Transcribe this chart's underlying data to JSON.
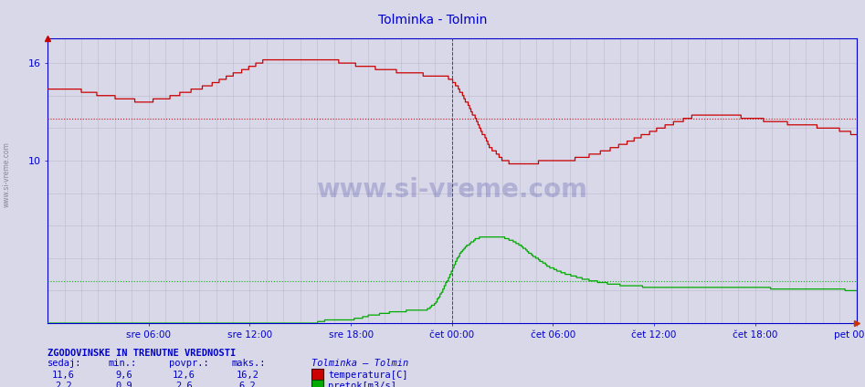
{
  "title": "Tolminka - Tolmin",
  "title_color": "#0000cc",
  "bg_color": "#d8d8e8",
  "plot_bg_color": "#d8d8e8",
  "x_labels": [
    "sre 06:00",
    "sre 12:00",
    "sre 18:00",
    "čet 00:00",
    "čet 06:00",
    "čet 12:00",
    "čet 18:00",
    "pet 00:00"
  ],
  "x_tick_positions": [
    0.125,
    0.25,
    0.375,
    0.5,
    0.625,
    0.75,
    0.875,
    1.0
  ],
  "ylim": [
    0,
    17.5
  ],
  "yticks": [
    10,
    16
  ],
  "temp_avg": 12.6,
  "flow_avg": 2.6,
  "temp_color": "#cc0000",
  "flow_color": "#00aa00",
  "vline_dash_color": "#555555",
  "vline_magenta_color": "#ff00ff",
  "grid_color": "#bbbbcc",
  "grid_color_minor": "#ddddee",
  "axis_color": "#0000cc",
  "watermark": "www.si-vreme.com",
  "watermark_color": "#000088",
  "sidebar_text": "www.si-vreme.com",
  "legend_title": "Tolminka – Tolmin",
  "temp_label": "temperatura[C]",
  "flow_label": "pretok[m3/s]",
  "stats_header": "ZGODOVINSKE IN TRENUTNE VREDNOSTI",
  "stats_cols": [
    "sedaj:",
    "min.:",
    "povpr.:",
    "maks.:"
  ],
  "temp_stats": [
    "11,6",
    "9,6",
    "12,6",
    "16,2"
  ],
  "flow_stats": [
    "2,2",
    "0,9",
    "2,6",
    "6,2"
  ],
  "n_points": 576,
  "total_hours": 48
}
